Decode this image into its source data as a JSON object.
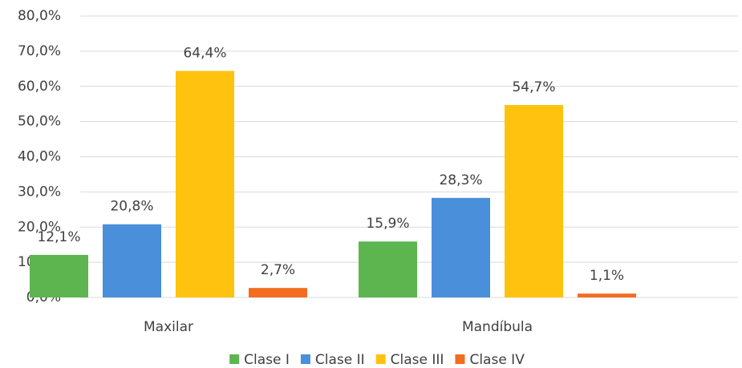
{
  "chart_data": {
    "type": "bar",
    "categories": [
      "Maxilar",
      "Mandíbula"
    ],
    "series": [
      {
        "name": "Clase I",
        "color": "#5cb54f",
        "values": [
          12.1,
          15.9
        ],
        "value_labels": [
          "12,1%",
          "15,9%"
        ]
      },
      {
        "name": "Clase II",
        "color": "#4a8fd9",
        "values": [
          20.8,
          28.3
        ],
        "value_labels": [
          "20,8%",
          "28,3%"
        ]
      },
      {
        "name": "Clase III",
        "color": "#ffc20e",
        "values": [
          64.4,
          54.7
        ],
        "value_labels": [
          "64,4%",
          "54,7%"
        ]
      },
      {
        "name": "Clase IV",
        "color": "#f36d21",
        "values": [
          2.7,
          1.1
        ],
        "value_labels": [
          "2,7%",
          "1,1%"
        ]
      }
    ],
    "ylim": [
      0,
      80
    ],
    "yticks": [
      {
        "value": 0,
        "label": "0,0%"
      },
      {
        "value": 10,
        "label": "10,0%"
      },
      {
        "value": 20,
        "label": "20,0%"
      },
      {
        "value": 30,
        "label": "30,0%"
      },
      {
        "value": 40,
        "label": "40,0%"
      },
      {
        "value": 50,
        "label": "50,0%"
      },
      {
        "value": 60,
        "label": "60,0%"
      },
      {
        "value": 70,
        "label": "70,0%"
      },
      {
        "value": 80,
        "label": "80,0%"
      }
    ],
    "grid": true,
    "legend": "bottom"
  }
}
